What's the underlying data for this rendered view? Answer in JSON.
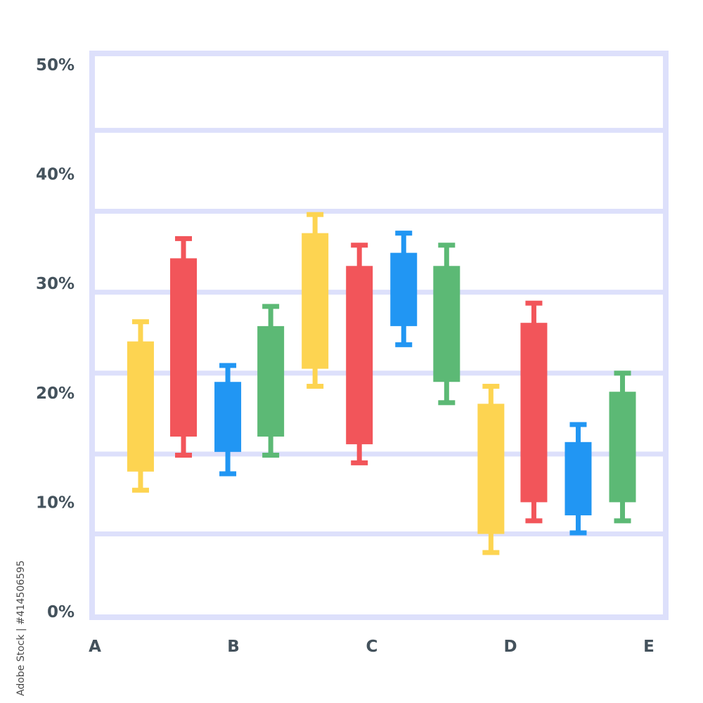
{
  "chart_data": {
    "type": "candlestick",
    "title": "",
    "xlabel": "",
    "ylabel": "",
    "x_tick_labels": [
      "A",
      "B",
      "C",
      "D",
      "E"
    ],
    "y_tick_labels": [
      "0%",
      "10%",
      "20%",
      "30%",
      "40%",
      "50%"
    ],
    "ylim": [
      0,
      50
    ],
    "grid": true,
    "colors": {
      "yellow": "#fdd451",
      "red": "#f2555a",
      "blue": "#2196f3",
      "green": "#5cb975",
      "frame": "#dde0fb",
      "text": "#44525c"
    },
    "candles": [
      {
        "x": 0.35,
        "color": "yellow",
        "low": 11.1,
        "open": 12.8,
        "close": 24.7,
        "high": 26.5
      },
      {
        "x": 0.66,
        "color": "red",
        "low": 14.3,
        "open": 16.0,
        "close": 32.3,
        "high": 34.1
      },
      {
        "x": 0.98,
        "color": "blue",
        "low": 12.6,
        "open": 14.6,
        "close": 21.0,
        "high": 22.5
      },
      {
        "x": 1.29,
        "color": "green",
        "low": 14.3,
        "open": 16.0,
        "close": 26.1,
        "high": 27.9
      },
      {
        "x": 1.61,
        "color": "yellow",
        "low": 20.6,
        "open": 22.2,
        "close": 34.6,
        "high": 36.3
      },
      {
        "x": 1.93,
        "color": "red",
        "low": 13.6,
        "open": 15.3,
        "close": 31.6,
        "high": 33.5
      },
      {
        "x": 2.25,
        "color": "blue",
        "low": 24.4,
        "open": 26.1,
        "close": 32.8,
        "high": 34.6
      },
      {
        "x": 2.56,
        "color": "green",
        "low": 19.1,
        "open": 21.0,
        "close": 31.6,
        "high": 33.5
      },
      {
        "x": 2.88,
        "color": "yellow",
        "low": 5.4,
        "open": 7.1,
        "close": 19.0,
        "high": 20.6
      },
      {
        "x": 3.19,
        "color": "red",
        "low": 8.3,
        "open": 10.0,
        "close": 26.4,
        "high": 28.2
      },
      {
        "x": 3.51,
        "color": "blue",
        "low": 7.2,
        "open": 8.8,
        "close": 15.5,
        "high": 17.1
      },
      {
        "x": 3.83,
        "color": "green",
        "low": 8.3,
        "open": 10.0,
        "close": 20.1,
        "high": 21.8
      }
    ]
  },
  "credit": "Adobe Stock | #414506595"
}
